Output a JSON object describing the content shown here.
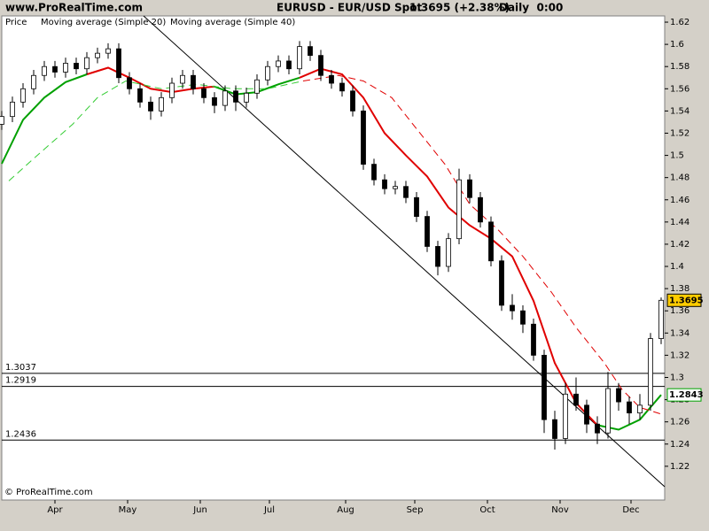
{
  "chart_data": {
    "type": "candlestick",
    "site": "www.ProRealTime.com",
    "title": "EURUSD - EUR/USD Spot",
    "quote": "1.3695 (+2.38%)",
    "period": "Daily  0:00",
    "footer": "© ProRealTime.com",
    "xlim": [
      0,
      187
    ],
    "ylim": [
      1.1896,
      1.6256
    ],
    "yticks": [
      1.22,
      1.24,
      1.26,
      1.28,
      1.3,
      1.32,
      1.34,
      1.36,
      1.38,
      1.4,
      1.42,
      1.44,
      1.46,
      1.48,
      1.5,
      1.52,
      1.54,
      1.56,
      1.58,
      1.6,
      1.62
    ],
    "xticks": [
      {
        "value": 15,
        "label": "Apr"
      },
      {
        "value": 35.5,
        "label": "May"
      },
      {
        "value": 56,
        "label": "Jun"
      },
      {
        "value": 75.5,
        "label": "Jul"
      },
      {
        "value": 97,
        "label": "Aug"
      },
      {
        "value": 116.5,
        "label": "Sep"
      },
      {
        "value": 137,
        "label": "Oct"
      },
      {
        "value": 157.5,
        "label": "Nov"
      },
      {
        "value": 177.5,
        "label": "Dec"
      }
    ],
    "price": {
      "name": "Price",
      "color": "#000000",
      "up_color": "#ffffff",
      "down_color": "#000000",
      "x": [
        0,
        3,
        6,
        9,
        12,
        15,
        18,
        21,
        24,
        27,
        30,
        33,
        36,
        39,
        42,
        45,
        48,
        51,
        54,
        57,
        60,
        63,
        66,
        69,
        72,
        75,
        78,
        81,
        84,
        87,
        90,
        93,
        96,
        99,
        102,
        105,
        108,
        111,
        114,
        117,
        120,
        123,
        126,
        129,
        132,
        135,
        138,
        141,
        144,
        147,
        150,
        153,
        156,
        159,
        162,
        165,
        168,
        171,
        174,
        177,
        180,
        183,
        186
      ],
      "open": [
        1.528,
        1.535,
        1.548,
        1.56,
        1.572,
        1.58,
        1.575,
        1.583,
        1.578,
        1.588,
        1.592,
        1.596,
        1.57,
        1.56,
        1.548,
        1.54,
        1.552,
        1.565,
        1.572,
        1.56,
        1.552,
        1.545,
        1.558,
        1.548,
        1.556,
        1.568,
        1.58,
        1.585,
        1.578,
        1.598,
        1.59,
        1.572,
        1.565,
        1.558,
        1.54,
        1.492,
        1.478,
        1.47,
        1.472,
        1.462,
        1.445,
        1.418,
        1.4,
        1.425,
        1.478,
        1.462,
        1.44,
        1.405,
        1.365,
        1.36,
        1.348,
        1.32,
        1.262,
        1.245,
        1.285,
        1.275,
        1.258,
        1.25,
        1.29,
        1.278,
        1.268,
        1.275,
        1.335
      ],
      "high": [
        1.54,
        1.553,
        1.565,
        1.577,
        1.585,
        1.585,
        1.588,
        1.588,
        1.593,
        1.597,
        1.601,
        1.601,
        1.575,
        1.565,
        1.553,
        1.557,
        1.57,
        1.577,
        1.577,
        1.565,
        1.557,
        1.563,
        1.563,
        1.561,
        1.573,
        1.585,
        1.59,
        1.59,
        1.603,
        1.603,
        1.595,
        1.577,
        1.57,
        1.563,
        1.545,
        1.497,
        1.483,
        1.477,
        1.477,
        1.467,
        1.45,
        1.423,
        1.43,
        1.488,
        1.483,
        1.467,
        1.445,
        1.41,
        1.375,
        1.365,
        1.353,
        1.325,
        1.27,
        1.295,
        1.3,
        1.28,
        1.265,
        1.305,
        1.295,
        1.283,
        1.285,
        1.34,
        1.372
      ],
      "low": [
        1.523,
        1.53,
        1.543,
        1.555,
        1.567,
        1.57,
        1.57,
        1.573,
        1.573,
        1.583,
        1.587,
        1.565,
        1.555,
        1.543,
        1.532,
        1.535,
        1.547,
        1.56,
        1.555,
        1.547,
        1.538,
        1.54,
        1.54,
        1.543,
        1.551,
        1.563,
        1.575,
        1.573,
        1.573,
        1.585,
        1.567,
        1.56,
        1.553,
        1.535,
        1.487,
        1.473,
        1.465,
        1.465,
        1.457,
        1.44,
        1.413,
        1.392,
        1.395,
        1.42,
        1.457,
        1.435,
        1.4,
        1.36,
        1.352,
        1.34,
        1.315,
        1.25,
        1.235,
        1.24,
        1.27,
        1.25,
        1.24,
        1.245,
        1.27,
        1.258,
        1.262,
        1.27,
        1.33
      ],
      "close": [
        1.535,
        1.548,
        1.56,
        1.572,
        1.58,
        1.575,
        1.583,
        1.578,
        1.588,
        1.592,
        1.596,
        1.57,
        1.56,
        1.548,
        1.54,
        1.552,
        1.565,
        1.572,
        1.56,
        1.552,
        1.545,
        1.558,
        1.548,
        1.556,
        1.568,
        1.58,
        1.585,
        1.578,
        1.598,
        1.59,
        1.572,
        1.565,
        1.558,
        1.54,
        1.492,
        1.478,
        1.47,
        1.472,
        1.462,
        1.445,
        1.418,
        1.4,
        1.425,
        1.478,
        1.462,
        1.44,
        1.405,
        1.365,
        1.36,
        1.348,
        1.32,
        1.262,
        1.245,
        1.285,
        1.275,
        1.258,
        1.25,
        1.29,
        1.278,
        1.268,
        1.275,
        1.335,
        1.3695
      ]
    },
    "averages": [
      {
        "name": "Moving average (Simple 20)",
        "color": "#00a000",
        "width": 2,
        "dash": null,
        "x": [
          0,
          6,
          12,
          18,
          24,
          30,
          36,
          42,
          48,
          54,
          60,
          66,
          72,
          78,
          84,
          90,
          96,
          102,
          108,
          114,
          120,
          126,
          132,
          138,
          144,
          150,
          156,
          162,
          168,
          174,
          180,
          186
        ],
        "values": [
          1.4925,
          1.532,
          1.552,
          1.566,
          1.573,
          1.579,
          1.57,
          1.56,
          1.557,
          1.56,
          1.562,
          1.555,
          1.557,
          1.564,
          1.57,
          1.578,
          1.573,
          1.552,
          1.52,
          1.5,
          1.481,
          1.453,
          1.437,
          1.425,
          1.409,
          1.369,
          1.313,
          1.277,
          1.257,
          1.253,
          1.262,
          1.2843
        ],
        "colors": [
          "#00a000",
          "#00a000",
          "#00a000",
          "#00a000",
          "#00a000",
          "#e00000",
          "#e00000",
          "#e00000",
          "#e00000",
          "#e00000",
          "#e00000",
          "#00a000",
          "#00a000",
          "#00a000",
          "#00a000",
          "#e00000",
          "#e00000",
          "#e00000",
          "#e00000",
          "#e00000",
          "#e00000",
          "#e00000",
          "#e00000",
          "#e00000",
          "#e00000",
          "#e00000",
          "#e00000",
          "#e00000",
          "#e00000",
          "#00a000",
          "#00a000",
          "#00a000"
        ]
      },
      {
        "name": "Moving average (Simple 40)",
        "color": "#33cc33",
        "width": 1,
        "dash": "8 5",
        "x": [
          2,
          10,
          20,
          27,
          35,
          45,
          55,
          65,
          75,
          85,
          95,
          102,
          110,
          117,
          125,
          132,
          140,
          147,
          155,
          162,
          170,
          175,
          180,
          186
        ],
        "values": [
          1.477,
          1.5,
          1.528,
          1.552,
          1.567,
          1.56,
          1.564,
          1.56,
          1.56,
          1.567,
          1.572,
          1.567,
          1.552,
          1.524,
          1.492,
          1.456,
          1.433,
          1.409,
          1.377,
          1.345,
          1.313,
          1.289,
          1.273,
          1.267
        ],
        "colors": [
          "#33cc33",
          "#33cc33",
          "#33cc33",
          "#33cc33",
          "#33cc33",
          "#33cc33",
          "#33cc33",
          "#33cc33",
          "#33cc33",
          "#33cc33",
          "#e00000",
          "#e00000",
          "#e00000",
          "#e00000",
          "#e00000",
          "#e00000",
          "#e00000",
          "#e00000",
          "#e00000",
          "#e00000",
          "#e00000",
          "#e00000",
          "#e00000",
          "#e00000"
        ]
      }
    ],
    "levels": [
      1.3037,
      1.2919,
      1.2436
    ],
    "trendline": {
      "x": [
        40,
        187
      ],
      "values": [
        1.6256,
        1.2016
      ]
    },
    "last_price": 1.3695,
    "last_price_color": "#ffcc00",
    "last_average": 1.2843,
    "last_average_color": "#00a000"
  }
}
